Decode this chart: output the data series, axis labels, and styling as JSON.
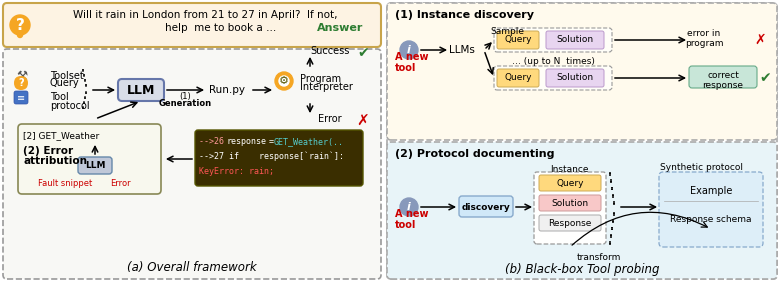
{
  "fig_width": 7.8,
  "fig_height": 2.89,
  "dpi": 100,
  "bg_color": "#ffffff",
  "question_bg": "#fdf3e3",
  "question_border": "#c8a44a",
  "question_text1": "Will it rain in London from 21 to 27 in April?  If not,",
  "question_text2": "help  me to book a …",
  "answer_text": "Answer",
  "answer_color": "#2e7d32",
  "caption_left": "(a) Overall framework",
  "caption_right": "(b) Black-box Tool probing",
  "instance_title": "(1) Instance discovery",
  "protocol_title": "(2) Protocol documenting",
  "error_red": "#cc0000",
  "success_green": "#2e7d32",
  "code_bg": "#3a2e00",
  "llm_box_color": "#c0c8d8",
  "query_color": "#ffd97d",
  "solution_color": "#e8d5f0",
  "response_color": "#f8c8c8",
  "correct_response_bg": "#c8e6d8",
  "right_top_bg": "#fffaed",
  "right_bot_bg": "#e8f4f8",
  "left_panel_bg": "#f5f5f5"
}
